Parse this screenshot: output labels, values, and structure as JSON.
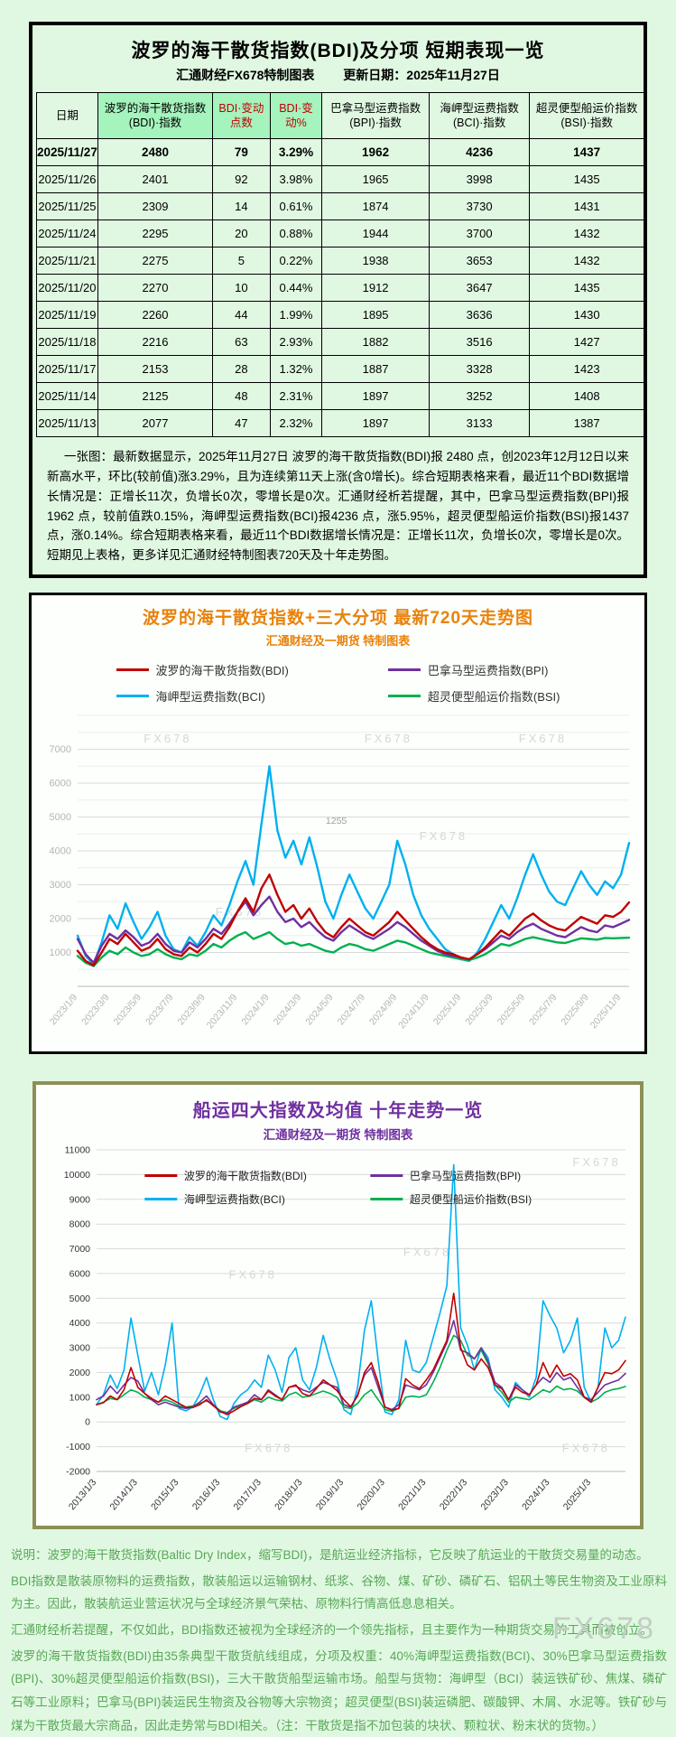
{
  "page": {
    "watermark": "FX678"
  },
  "top_panel": {
    "title": "波罗的海干散货指数(BDI)及分项 短期表现一览",
    "subtitle_left": "汇通财经FX678特制图表",
    "subtitle_right": "更新日期：2025年11月27日",
    "table": {
      "columns": [
        {
          "label": "日期",
          "red": false,
          "green_bg": false
        },
        {
          "label": "波罗的海干散货指数(BDI)·指数",
          "red": false,
          "green_bg": true
        },
        {
          "label": "BDI·变动点数",
          "red": true,
          "green_bg": true
        },
        {
          "label": "BDI·变动%",
          "red": true,
          "green_bg": true
        },
        {
          "label": "巴拿马型运费指数(BPI)·指数",
          "red": false,
          "green_bg": false
        },
        {
          "label": "海岬型运费指数(BCI)·指数",
          "red": false,
          "green_bg": false
        },
        {
          "label": "超灵便型船运价指数(BSI)·指数",
          "red": false,
          "green_bg": false
        }
      ],
      "rows": [
        [
          "2025/11/27",
          "2480",
          "79",
          "3.29%",
          "1962",
          "4236",
          "1437"
        ],
        [
          "2025/11/26",
          "2401",
          "92",
          "3.98%",
          "1965",
          "3998",
          "1435"
        ],
        [
          "2025/11/25",
          "2309",
          "14",
          "0.61%",
          "1874",
          "3730",
          "1431"
        ],
        [
          "2025/11/24",
          "2295",
          "20",
          "0.88%",
          "1944",
          "3700",
          "1432"
        ],
        [
          "2025/11/21",
          "2275",
          "5",
          "0.22%",
          "1938",
          "3653",
          "1432"
        ],
        [
          "2025/11/20",
          "2270",
          "10",
          "0.44%",
          "1912",
          "3647",
          "1435"
        ],
        [
          "2025/11/19",
          "2260",
          "44",
          "1.99%",
          "1895",
          "3636",
          "1430"
        ],
        [
          "2025/11/18",
          "2216",
          "63",
          "2.93%",
          "1882",
          "3516",
          "1427"
        ],
        [
          "2025/11/17",
          "2153",
          "28",
          "1.32%",
          "1887",
          "3328",
          "1423"
        ],
        [
          "2025/11/14",
          "2125",
          "48",
          "2.31%",
          "1897",
          "3252",
          "1408"
        ],
        [
          "2025/11/13",
          "2077",
          "47",
          "2.32%",
          "1897",
          "3133",
          "1387"
        ]
      ]
    },
    "summary": "一张图：最新数据显示，2025年11月27日 波罗的海干散货指数(BDI)报 2480 点，创2023年12月12日以来新高水平，环比(较前值)涨3.29%，且为连续第11天上涨(含0增长)。综合短期表格来看，最近11个BDI数据增长情况是：正增长11次，负增长0次，零增长是0次。汇通财经析若提醒，其中，巴拿马型运费指数(BPI)报1962 点，较前值跌0.15%，海岬型运费指数(BCI)报4236 点，涨5.95%，超灵便型船运价指数(BSI)报1437 点，涨0.14%。综合短期表格来看，最近11个BDI数据增长情况是：正增长11次，负增长0次，零增长是0次。短期见上表格，更多详见汇通财经特制图表720天及十年走势图。"
  },
  "chart_data": [
    {
      "type": "line",
      "title": "波罗的海干散货指数+三大分项  最新720天走势图",
      "subtitle": "汇通财经及一期货  特制图表",
      "title_color": "#e8820c",
      "ylim": [
        0,
        8000
      ],
      "yticks": [
        1000,
        2000,
        3000,
        4000,
        5000,
        6000,
        7000
      ],
      "grid_step": 500,
      "grid": true,
      "legend_position": "top",
      "xlabels": [
        "2023/1/9",
        "2023/3/9",
        "2023/5/9",
        "2023/7/9",
        "2023/9/9",
        "2023/11/9",
        "2024/1/9",
        "2024/3/9",
        "2024/5/9",
        "2024/7/9",
        "2024/9/9",
        "2024/11/9",
        "2025/1/9",
        "2025/3/9",
        "2025/5/9",
        "2025/7/9",
        "2025/9/9",
        "2025/11/9"
      ],
      "points_per_label": 4,
      "series": [
        {
          "name": "波罗的海干散货指数(BDI)",
          "color": "#c00000",
          "values": [
            1050,
            750,
            620,
            1000,
            1400,
            1250,
            1550,
            1300,
            1050,
            1150,
            1400,
            1100,
            950,
            900,
            1150,
            1000,
            1250,
            1550,
            1400,
            1750,
            2200,
            2600,
            2200,
            2900,
            3300,
            2700,
            2200,
            2400,
            2000,
            2300,
            1900,
            1600,
            1450,
            1750,
            2000,
            1800,
            1600,
            1500,
            1700,
            1900,
            2200,
            1950,
            1700,
            1450,
            1250,
            1100,
            1000,
            950,
            850,
            800,
            950,
            1150,
            1400,
            1650,
            1500,
            1750,
            2000,
            2150,
            1950,
            1800,
            1700,
            1650,
            1850,
            2050,
            1950,
            1850,
            2100,
            2050,
            2200,
            2480
          ]
        },
        {
          "name": "巴拿马型运费指数(BPI)",
          "color": "#7030a0",
          "values": [
            1400,
            950,
            700,
            1200,
            1550,
            1400,
            1650,
            1450,
            1200,
            1300,
            1550,
            1250,
            1050,
            1000,
            1300,
            1150,
            1400,
            1700,
            1550,
            1850,
            2200,
            2500,
            2100,
            2400,
            2650,
            2200,
            1900,
            2000,
            1750,
            1900,
            1650,
            1450,
            1350,
            1600,
            1800,
            1650,
            1500,
            1400,
            1550,
            1700,
            1900,
            1750,
            1550,
            1350,
            1200,
            1050,
            950,
            900,
            850,
            800,
            950,
            1100,
            1300,
            1500,
            1400,
            1600,
            1750,
            1850,
            1700,
            1600,
            1500,
            1450,
            1600,
            1750,
            1650,
            1600,
            1800,
            1750,
            1850,
            1962
          ]
        },
        {
          "name": "海岬型运费指数(BCI)",
          "color": "#00b0f0",
          "values": [
            1500,
            900,
            650,
            1300,
            2100,
            1700,
            2450,
            1900,
            1400,
            1750,
            2200,
            1500,
            1100,
            1000,
            1450,
            1200,
            1600,
            2100,
            1800,
            2400,
            3100,
            3700,
            3000,
            4800,
            6500,
            4600,
            3800,
            4300,
            3600,
            4400,
            3500,
            2500,
            2000,
            2700,
            3300,
            2800,
            2300,
            2000,
            2500,
            3000,
            4300,
            3600,
            2700,
            2100,
            1700,
            1400,
            1100,
            950,
            800,
            750,
            1000,
            1400,
            1900,
            2400,
            2000,
            2600,
            3300,
            3900,
            3300,
            2800,
            2500,
            2400,
            2900,
            3400,
            3000,
            2700,
            3100,
            2900,
            3300,
            4236
          ]
        },
        {
          "name": "超灵便型船运价指数(BSI)",
          "color": "#00b050",
          "values": [
            900,
            700,
            600,
            850,
            1050,
            950,
            1150,
            1000,
            900,
            950,
            1100,
            950,
            850,
            800,
            950,
            900,
            1050,
            1250,
            1150,
            1350,
            1500,
            1600,
            1400,
            1500,
            1600,
            1400,
            1250,
            1300,
            1200,
            1250,
            1150,
            1050,
            1000,
            1150,
            1250,
            1200,
            1100,
            1050,
            1150,
            1250,
            1350,
            1300,
            1200,
            1100,
            1000,
            950,
            900,
            850,
            800,
            780,
            850,
            950,
            1100,
            1250,
            1200,
            1300,
            1400,
            1450,
            1400,
            1350,
            1300,
            1280,
            1350,
            1420,
            1400,
            1380,
            1430,
            1420,
            1430,
            1437
          ]
        }
      ],
      "watermark_text": "FX678",
      "watermarks": [
        {
          "x": 0.12,
          "y": 0.1
        },
        {
          "x": 0.52,
          "y": 0.1
        },
        {
          "x": 0.8,
          "y": 0.1
        },
        {
          "x": 0.25,
          "y": 0.74
        },
        {
          "x": 0.62,
          "y": 0.46
        }
      ],
      "annotations": [
        {
          "x": 0.45,
          "y": 0.4,
          "text": "1255"
        }
      ]
    },
    {
      "type": "line",
      "title": "船运四大指数及均值 十年走势一览",
      "subtitle": "汇通财经及一期货 特制图表",
      "title_color": "#7030a0",
      "ylim": [
        -2000,
        11000
      ],
      "yticks": [
        -2000,
        -1000,
        0,
        1000,
        2000,
        3000,
        4000,
        5000,
        6000,
        7000,
        8000,
        9000,
        10000,
        11000
      ],
      "grid_step": 1000,
      "grid": true,
      "legend_position": "inside-top",
      "xlabels": [
        "2013/1/3",
        "2014/1/3",
        "2015/1/3",
        "2016/1/3",
        "2017/1/3",
        "2018/1/3",
        "2019/1/3",
        "2020/1/3",
        "2021/1/3",
        "2022/1/3",
        "2023/1/3",
        "2024/1/3",
        "2025/1/3"
      ],
      "points_per_label": 6,
      "series": [
        {
          "name": "波罗的海干散货指数(BDI)",
          "color": "#c00000",
          "values": [
            700,
            780,
            1050,
            900,
            1300,
            2200,
            1400,
            1150,
            950,
            800,
            1050,
            900,
            750,
            600,
            580,
            700,
            900,
            650,
            430,
            300,
            450,
            620,
            750,
            950,
            900,
            1250,
            1050,
            900,
            1400,
            1500,
            1150,
            1050,
            1350,
            1700,
            1500,
            1270,
            900,
            620,
            1050,
            2000,
            2400,
            1600,
            600,
            480,
            550,
            1750,
            1500,
            1350,
            1700,
            2100,
            2700,
            3300,
            5200,
            3000,
            2300,
            2100,
            2550,
            2200,
            1500,
            1350,
            900,
            1400,
            1200,
            1100,
            1500,
            2400,
            1800,
            2300,
            1850,
            1950,
            1700,
            1000,
            800,
            1400,
            2000,
            1950,
            2100,
            2480
          ]
        },
        {
          "name": "巴拿马型运费指数(BPI)",
          "color": "#7030a0",
          "values": [
            900,
            1050,
            1450,
            1150,
            1500,
            1800,
            1650,
            1150,
            900,
            700,
            800,
            700,
            600,
            550,
            600,
            800,
            1050,
            700,
            400,
            350,
            600,
            700,
            800,
            1100,
            900,
            1300,
            1100,
            900,
            1400,
            1450,
            1300,
            1200,
            1400,
            1600,
            1500,
            1400,
            700,
            600,
            1100,
            1900,
            2200,
            1400,
            600,
            500,
            700,
            1500,
            1400,
            1300,
            1500,
            2000,
            2600,
            3200,
            4100,
            2900,
            2800,
            2550,
            3000,
            2450,
            1600,
            1400,
            900,
            1500,
            1300,
            1100,
            1500,
            1800,
            1600,
            2000,
            1700,
            1800,
            1400,
            1000,
            900,
            1200,
            1500,
            1600,
            1700,
            1962
          ]
        },
        {
          "name": "海岬型运费指数(BCI)",
          "color": "#00b0f0",
          "values": [
            700,
            1100,
            1900,
            1350,
            2100,
            4200,
            2700,
            1250,
            2000,
            1100,
            2300,
            4000,
            550,
            450,
            600,
            1100,
            1800,
            900,
            220,
            100,
            750,
            1100,
            1300,
            1700,
            1400,
            2700,
            2100,
            1200,
            2600,
            3000,
            1700,
            1300,
            2200,
            3500,
            2500,
            1700,
            500,
            300,
            1400,
            3700,
            4900,
            2500,
            400,
            300,
            900,
            3300,
            2100,
            2000,
            2400,
            3400,
            4400,
            5500,
            10400,
            3800,
            3100,
            2100,
            3000,
            2600,
            1300,
            1000,
            600,
            1600,
            1300,
            1000,
            1800,
            4900,
            4300,
            3800,
            2800,
            3300,
            4200,
            1400,
            800,
            1400,
            3800,
            3000,
            3300,
            4236
          ]
        },
        {
          "name": "超灵便型船运价指数(BSI)",
          "color": "#00b050",
          "values": [
            700,
            800,
            950,
            900,
            1100,
            1300,
            1200,
            1000,
            900,
            800,
            900,
            800,
            650,
            600,
            650,
            750,
            850,
            700,
            450,
            380,
            550,
            650,
            750,
            900,
            800,
            1000,
            900,
            850,
            1100,
            1200,
            1000,
            1050,
            1150,
            1250,
            1150,
            1000,
            600,
            550,
            750,
            1100,
            1300,
            900,
            500,
            430,
            550,
            1000,
            1050,
            1000,
            1100,
            1600,
            2200,
            2900,
            3500,
            3300,
            2700,
            2550,
            2900,
            2350,
            1500,
            1200,
            800,
            1000,
            950,
            900,
            1100,
            1300,
            1200,
            1450,
            1300,
            1350,
            1250,
            1000,
            800,
            950,
            1200,
            1300,
            1350,
            1437
          ]
        }
      ],
      "watermark_text": "FX678",
      "watermarks": [
        {
          "x": 0.25,
          "y": 0.4
        },
        {
          "x": 0.58,
          "y": 0.33
        },
        {
          "x": 0.9,
          "y": 0.05
        },
        {
          "x": 0.28,
          "y": 0.94
        },
        {
          "x": 0.88,
          "y": 0.94
        }
      ],
      "annotations": []
    }
  ],
  "notes": [
    "说明：波罗的海干散货指数(Baltic Dry Index，缩写BDI)，是航运业经济指标，它反映了航运业的干散货交易量的动态。",
    "BDI指数是散装原物料的运费指数，散装船运以运输钢材、纸浆、谷物、煤、矿砂、磷矿石、铝矾土等民生物资及工业原料为主。因此，散装航运业营运状况与全球经济景气荣枯、原物料行情高低息息相关。",
    "汇通财经析若提醒，不仅如此，BDI指数还被视为全球经济的一个领先指标，且主要作为一种期货交易的工具而被创立。",
    "波罗的海干散货指数(BDI)由35条典型干散货航线组成，分项及权重：40%海岬型运费指数(BCI)、30%巴拿马型运费指数(BPI)、30%超灵便型船运价指数(BSI)，三大干散货船型运输市场。船型与货物：海岬型（BCI）装运铁矿砂、焦煤、磷矿石等工业原料；巴拿马(BPI)装运民生物资及谷物等大宗物资；超灵便型(BSI)装运磷肥、碳酸钾、木屑、水泥等。铁矿砂与煤为干散货最大宗商品，因此走势常与BDI相关。（注：干散货是指不加包装的块状、颗粒状、粉末状的货物。）"
  ]
}
